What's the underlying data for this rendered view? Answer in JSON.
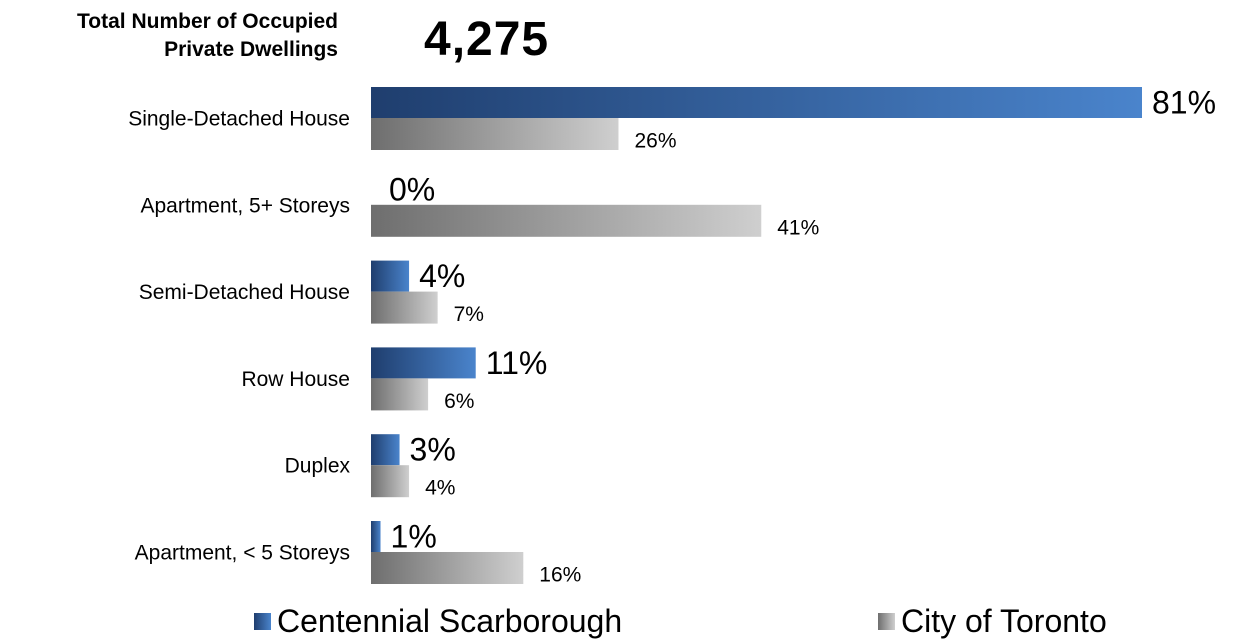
{
  "header": {
    "label_line1": "Total Number of Occupied",
    "label_line2": "Private Dwellings",
    "value": "4,275"
  },
  "chart_data": {
    "type": "bar",
    "orientation": "horizontal",
    "categories": [
      "Single-Detached House",
      "Apartment, 5+ Storeys",
      "Semi-Detached House",
      "Row House",
      "Duplex",
      "Apartment, < 5 Storeys"
    ],
    "series": [
      {
        "name": "Centennial Scarborough",
        "values": [
          81,
          0,
          4,
          11,
          3,
          1
        ],
        "labels": [
          "81%",
          "0%",
          "4%",
          "11%",
          "3%",
          "1%"
        ],
        "color_start": "#1f3e6e",
        "color_end": "#4a84cc"
      },
      {
        "name": "City of Toronto",
        "values": [
          26,
          41,
          7,
          6,
          4,
          16
        ],
        "labels": [
          "26%",
          "41%",
          "7%",
          "6%",
          "4%",
          "16%"
        ],
        "color_start": "#6e6e6e",
        "color_end": "#cfcfcf"
      }
    ],
    "xlim": [
      0,
      81
    ],
    "grid": false,
    "legend_position": "bottom"
  }
}
